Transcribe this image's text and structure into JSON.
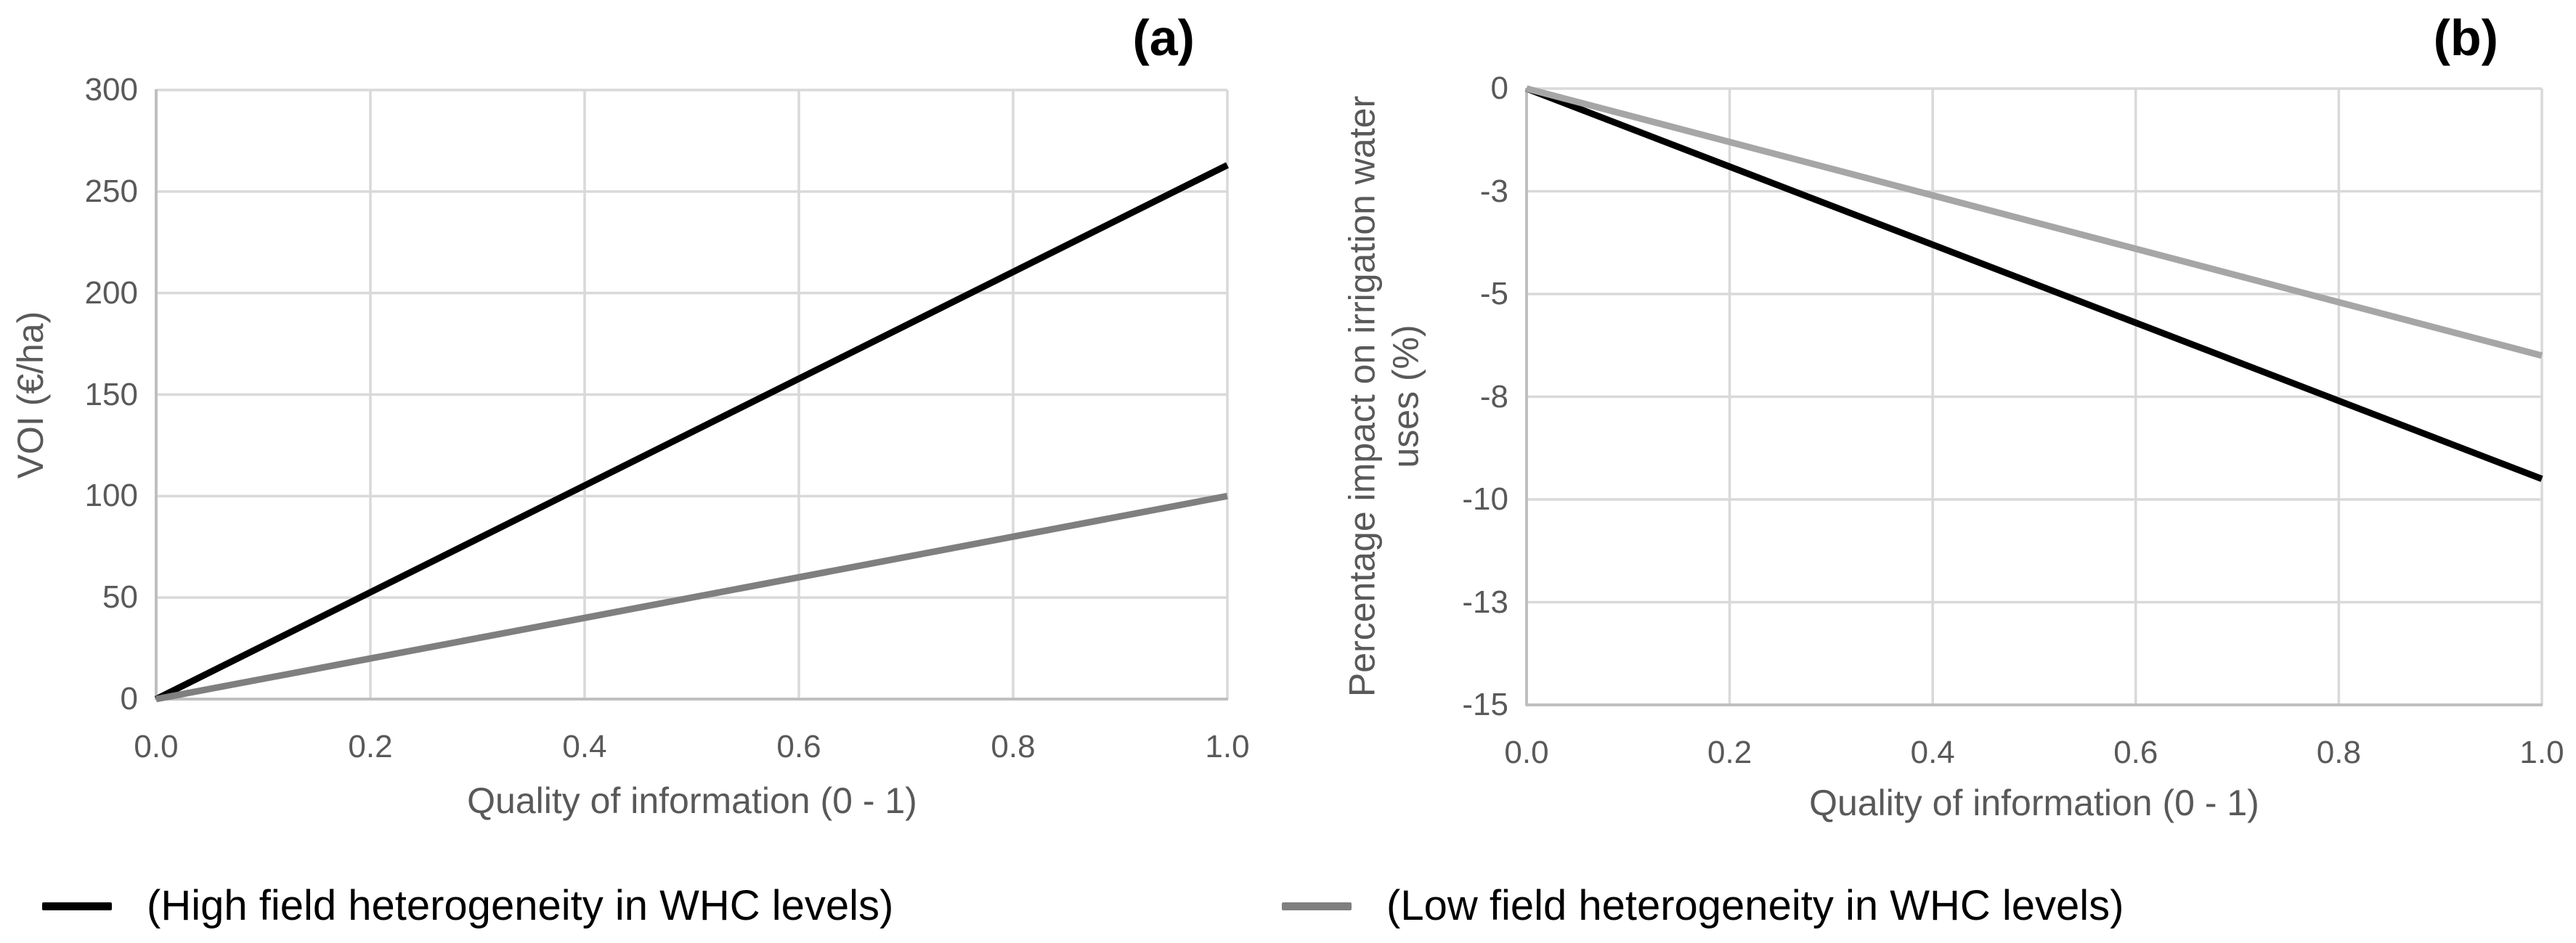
{
  "chart_data": [
    {
      "type": "line",
      "panel_tag": "(a)",
      "xlabel": "Quality of information (0 - 1)",
      "ylabel_lines": [
        "VOI (€/ha)"
      ],
      "xlim": [
        0,
        1
      ],
      "ylim": [
        0,
        300
      ],
      "grid": true,
      "legend_position": "bottom",
      "xticks": [
        {
          "label": "0.0",
          "value": 0
        },
        {
          "label": "0.2",
          "value": 0.2
        },
        {
          "label": "0.4",
          "value": 0.4
        },
        {
          "label": "0.6",
          "value": 0.6
        },
        {
          "label": "0.8",
          "value": 0.8
        },
        {
          "label": "1.0",
          "value": 1
        }
      ],
      "yticks": [
        {
          "label": "0",
          "value": 0
        },
        {
          "label": "50",
          "value": 50
        },
        {
          "label": "100",
          "value": 100
        },
        {
          "label": "150",
          "value": 150
        },
        {
          "label": "200",
          "value": 200
        },
        {
          "label": "250",
          "value": 250
        },
        {
          "label": "300",
          "value": 300
        }
      ],
      "series": [
        {
          "name": "High field heterogeneity in WHC levels",
          "color": "#000000",
          "x": [
            0,
            1
          ],
          "y": [
            0,
            263
          ]
        },
        {
          "name": "Low field heterogeneity in WHC levels",
          "color": "#7f7f7f",
          "x": [
            0,
            1
          ],
          "y": [
            0,
            100
          ]
        }
      ]
    },
    {
      "type": "line",
      "panel_tag": "(b)",
      "xlabel": "Quality of information (0 - 1)",
      "ylabel_lines": [
        "Percentage impact on irrigation water",
        "uses (%)"
      ],
      "xlim": [
        0,
        1
      ],
      "ylim": [
        -15,
        0
      ],
      "grid": true,
      "legend_position": "bottom",
      "xticks": [
        {
          "label": "0.0",
          "value": 0
        },
        {
          "label": "0.2",
          "value": 0.2
        },
        {
          "label": "0.4",
          "value": 0.4
        },
        {
          "label": "0.6",
          "value": 0.6
        },
        {
          "label": "0.8",
          "value": 0.8
        },
        {
          "label": "1.0",
          "value": 1
        }
      ],
      "yticks": [
        {
          "label": "0",
          "value": 0
        },
        {
          "label": "-3",
          "value": -2.5
        },
        {
          "label": "-5",
          "value": -5
        },
        {
          "label": "-8",
          "value": -7.5
        },
        {
          "label": "-10",
          "value": -10
        },
        {
          "label": "-13",
          "value": -12.5
        },
        {
          "label": "-15",
          "value": -15
        }
      ],
      "series": [
        {
          "name": "High field heterogeneity in WHC levels",
          "color": "#000000",
          "x": [
            0,
            1
          ],
          "y": [
            0,
            -9.5
          ]
        },
        {
          "name": "Low field heterogeneity in WHC levels",
          "color": "#a6a6a6",
          "x": [
            0,
            1
          ],
          "y": [
            0,
            -6.5
          ]
        }
      ]
    }
  ],
  "legend": {
    "items": [
      {
        "label": "(High field heterogeneity in WHC levels)",
        "color": "#000000"
      },
      {
        "label": "(Low field heterogeneity in WHC levels)",
        "color": "#7f7f7f"
      }
    ]
  },
  "colors": {
    "grid": "#d9d9d9",
    "axis": "#bfbfbf",
    "tick_text": "#595959",
    "legend_text": "#000000"
  }
}
